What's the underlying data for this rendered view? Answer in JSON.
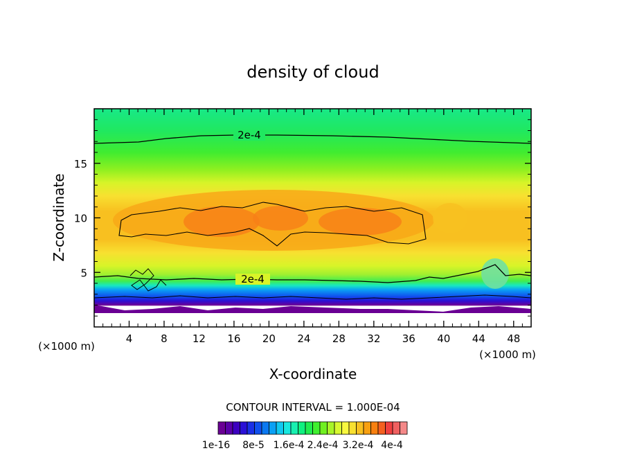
{
  "chart_data": {
    "type": "contour",
    "title": "density of cloud",
    "xlabel": "X-coordinate",
    "ylabel": "Z-coordinate",
    "x_unit_left": "(×1000 m)",
    "x_unit_right": "(×1000 m)",
    "xlim": [
      0,
      50
    ],
    "ylim": [
      0,
      20
    ],
    "xticks": [
      "4",
      "8",
      "12",
      "16",
      "20",
      "24",
      "28",
      "32",
      "36",
      "40",
      "44",
      "48"
    ],
    "xtick_values": [
      4,
      8,
      12,
      16,
      20,
      24,
      28,
      32,
      36,
      40,
      44,
      48
    ],
    "yticks": [
      "5",
      "10",
      "15"
    ],
    "ytick_values": [
      5,
      10,
      15
    ],
    "contour_interval_text": "CONTOUR INTERVAL = 1.000E-04",
    "contour_labels": [
      {
        "text": "2e-4",
        "x": 17.5,
        "y": 17.4
      },
      {
        "text": "2e-4",
        "x": 17.5,
        "y": 4.3
      }
    ],
    "colorbar": {
      "colors": [
        "#6a0094",
        "#5a00a8",
        "#3c00c0",
        "#2a10d6",
        "#1a30e6",
        "#1050ee",
        "#0a78f0",
        "#0aa0f4",
        "#10c8f0",
        "#18e8e0",
        "#18f0b0",
        "#10f080",
        "#20ec50",
        "#40f030",
        "#70f020",
        "#a8f428",
        "#d8f830",
        "#f8f840",
        "#f8e030",
        "#f8c020",
        "#f8a010",
        "#f88010",
        "#f46020",
        "#f04040",
        "#f06060",
        "#f48888"
      ],
      "labels": [
        "1e-16",
        "8e-5",
        "1.6e-4",
        "2.4e-4",
        "3.2e-4",
        "4e-4"
      ]
    },
    "grid": false
  }
}
